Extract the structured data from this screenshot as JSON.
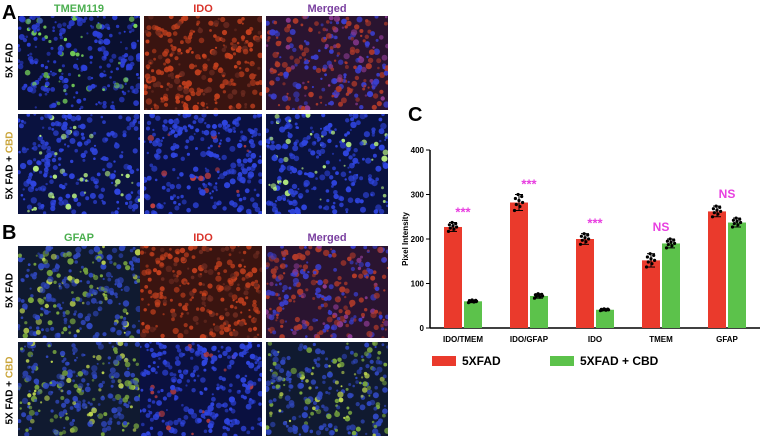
{
  "figure": {
    "panel_a": {
      "letter": "A",
      "columns": [
        "TMEM119",
        "IDO",
        "Merged"
      ],
      "rows": [
        {
          "main": "5X FAD",
          "highlight": ""
        },
        {
          "main": "5X FAD + ",
          "highlight": "CBD"
        }
      ]
    },
    "panel_b": {
      "letter": "B",
      "columns": [
        "GFAP",
        "IDO",
        "Merged"
      ],
      "rows": [
        {
          "main": "5X FAD",
          "highlight": ""
        },
        {
          "main": "5X FAD + ",
          "highlight": "CBD"
        }
      ]
    },
    "panel_c": {
      "letter": "C"
    }
  },
  "colors": {
    "green_label": "#4caf50",
    "red_label": "#d9342b",
    "purple_label": "#7a3fa0",
    "bar_5xfad": "#ea3a2c",
    "bar_cbd": "#5cc24b",
    "significance": "#e83fe0"
  },
  "chart_data": {
    "type": "bar",
    "categories": [
      "IDO/TMEM",
      "IDO/GFAP",
      "IDO",
      "TMEM",
      "GFAP"
    ],
    "series": [
      {
        "name": "5XFAD",
        "values": [
          227,
          282,
          200,
          152,
          262
        ],
        "errors": [
          10,
          18,
          12,
          15,
          12
        ]
      },
      {
        "name": "5XFAD + CBD",
        "values": [
          60,
          72,
          41,
          190,
          237
        ],
        "errors": [
          3,
          5,
          2,
          10,
          10
        ]
      }
    ],
    "significance": [
      "***",
      "***",
      "***",
      "NS",
      "NS"
    ],
    "ylabel": "Pixel Intensity",
    "ylim": [
      0,
      400
    ],
    "yticks": [
      0,
      100,
      200,
      300,
      400
    ],
    "legend_position": "bottom"
  }
}
